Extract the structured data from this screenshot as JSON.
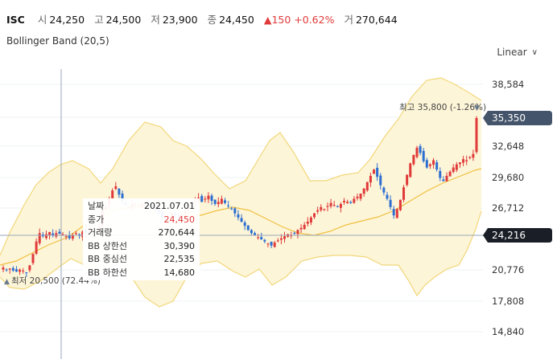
{
  "header": {
    "symbol": "ISC",
    "open_label": "시",
    "open": "24,250",
    "high_label": "고",
    "high": "24,500",
    "low_label": "저",
    "low": "23,900",
    "close_label": "종",
    "close": "24,450",
    "change_arrow": "▲",
    "change": "150",
    "change_pct": "+0.62%",
    "volume_label": "거",
    "volume": "270,644"
  },
  "indicator": {
    "label": "Bollinger Band (20,5)"
  },
  "scale": {
    "label": "Linear",
    "icon": "chevron-down-icon"
  },
  "yaxis": {
    "ticks": [
      "38,584",
      "35,350",
      "32,648",
      "29,680",
      "26,712",
      "24,216",
      "20,776",
      "17,808",
      "14,840"
    ]
  },
  "badges": {
    "last_price": "35,350",
    "crosshair_price": "24,216",
    "max_label": "최고 35,800 (-1.26%)",
    "min_label": "최저 20,500 (72.44%)"
  },
  "tooltip": {
    "rows": [
      {
        "k": "날짜",
        "v": "2021.07.01"
      },
      {
        "k": "종가",
        "v": "24,450"
      },
      {
        "k": "거래량",
        "v": "270,644"
      },
      {
        "k": "BB 상한선",
        "v": "30,390"
      },
      {
        "k": "BB 중심선",
        "v": "22,535"
      },
      {
        "k": "BB 하한선",
        "v": "14,680"
      }
    ]
  },
  "colors": {
    "up": "#e03a3a",
    "down": "#2d6fd1",
    "band_fill": "#fdf5d8",
    "band_line": "#f2d77a",
    "mid_line": "#f0c040",
    "badge_bg": "#44546a",
    "crosshair": "#9aa6b8"
  }
}
